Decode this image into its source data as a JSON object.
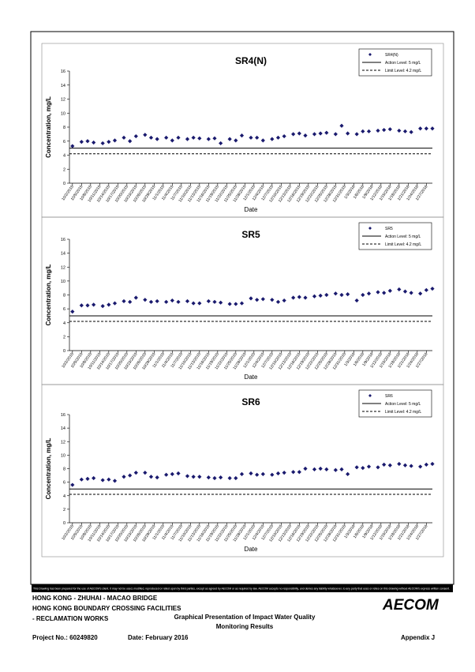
{
  "chart_data": [
    {
      "type": "scatter",
      "title": "SR4(N)",
      "x_label": "Date",
      "y_label": "Concentration, mg/L",
      "xlim": [
        "10/1/2015",
        "1/29/2016"
      ],
      "xticks": [
        "10/2/2015",
        "10/5/2015",
        "10/8/2015",
        "10/11/2015",
        "10/14/2015",
        "10/17/2015",
        "10/20/2015",
        "10/23/2015",
        "10/26/2015",
        "10/29/2015",
        "11/1/2015",
        "11/4/2015",
        "11/7/2015",
        "11/10/2015",
        "11/13/2015",
        "11/16/2015",
        "11/19/2015",
        "11/22/2015",
        "11/25/2015",
        "11/28/2015",
        "12/1/2015",
        "12/4/2015",
        "12/7/2015",
        "12/10/2015",
        "12/13/2015",
        "12/16/2015",
        "12/19/2015",
        "12/22/2015",
        "12/25/2015",
        "12/28/2015",
        "12/31/2015",
        "1/3/2016",
        "1/6/2016",
        "1/9/2016",
        "1/12/2016",
        "1/15/2016",
        "1/18/2016",
        "1/21/2016",
        "1/24/2016",
        "1/27/2016"
      ],
      "ylim": [
        0,
        16
      ],
      "yticks": [
        0,
        2,
        4,
        6,
        8,
        10,
        12,
        14,
        16
      ],
      "series": [
        {
          "name": "SR4(N)",
          "color": "#1a1a6e",
          "x": [
            "10/2/2015",
            "10/5/2015",
            "10/7/2015",
            "10/9/2015",
            "10/12/2015",
            "10/14/2015",
            "10/16/2015",
            "10/19/2015",
            "10/21/2015",
            "10/23/2015",
            "10/26/2015",
            "10/28/2015",
            "10/30/2015",
            "11/2/2015",
            "11/4/2015",
            "11/6/2015",
            "11/9/2015",
            "11/11/2015",
            "11/13/2015",
            "11/16/2015",
            "11/18/2015",
            "11/20/2015",
            "11/23/2015",
            "11/25/2015",
            "11/27/2015",
            "11/30/2015",
            "12/2/2015",
            "12/4/2015",
            "12/7/2015",
            "12/9/2015",
            "12/11/2015",
            "12/14/2015",
            "12/16/2015",
            "12/18/2015",
            "12/21/2015",
            "12/23/2015",
            "12/25/2015",
            "12/28/2015",
            "12/30/2015",
            "1/1/2016",
            "1/4/2016",
            "1/6/2016",
            "1/8/2016",
            "1/11/2016",
            "1/13/2016",
            "1/15/2016",
            "1/18/2016",
            "1/20/2016",
            "1/22/2016",
            "1/25/2016",
            "1/27/2016",
            "1/29/2016"
          ],
          "values": [
            5.3,
            5.9,
            6.0,
            5.8,
            5.7,
            5.9,
            6.1,
            6.5,
            6.0,
            6.7,
            6.9,
            6.5,
            6.3,
            6.5,
            6.1,
            6.5,
            6.3,
            6.5,
            6.4,
            6.3,
            6.4,
            5.7,
            6.3,
            6.1,
            6.8,
            6.5,
            6.5,
            6.1,
            6.3,
            6.5,
            6.7,
            7.0,
            7.1,
            6.8,
            7.0,
            7.1,
            7.2,
            7.0,
            8.2,
            7.1,
            7.0,
            7.4,
            7.4,
            7.5,
            7.6,
            7.7,
            7.5,
            7.4,
            7.3,
            7.8,
            7.8,
            7.8
          ]
        }
      ],
      "reference_lines": [
        {
          "name": "Action Level: 5 mg/L",
          "value": 5,
          "style": "solid"
        },
        {
          "name": "Limit Level: 4.2 mg/L",
          "value": 4.2,
          "style": "dashed"
        }
      ]
    },
    {
      "type": "scatter",
      "title": "SR5",
      "x_label": "Date",
      "y_label": "Concentration, mg/L",
      "xlim": [
        "10/1/2015",
        "1/29/2016"
      ],
      "xticks": [
        "10/2/2015",
        "10/5/2015",
        "10/8/2015",
        "10/11/2015",
        "10/14/2015",
        "10/17/2015",
        "10/20/2015",
        "10/23/2015",
        "10/26/2015",
        "10/29/2015",
        "11/1/2015",
        "11/4/2015",
        "11/7/2015",
        "11/10/2015",
        "11/13/2015",
        "11/16/2015",
        "11/19/2015",
        "11/22/2015",
        "11/25/2015",
        "11/28/2015",
        "12/1/2015",
        "12/4/2015",
        "12/7/2015",
        "12/10/2015",
        "12/13/2015",
        "12/16/2015",
        "12/19/2015",
        "12/22/2015",
        "12/25/2015",
        "12/28/2015",
        "12/31/2015",
        "1/3/2016",
        "1/6/2016",
        "1/9/2016",
        "1/12/2016",
        "1/15/2016",
        "1/18/2016",
        "1/21/2016",
        "1/24/2016",
        "1/27/2016"
      ],
      "ylim": [
        0,
        16
      ],
      "yticks": [
        0,
        2,
        4,
        6,
        8,
        10,
        12,
        14,
        16
      ],
      "series": [
        {
          "name": "SR5",
          "color": "#1a1a6e",
          "x": [
            "10/2/2015",
            "10/5/2015",
            "10/7/2015",
            "10/9/2015",
            "10/12/2015",
            "10/14/2015",
            "10/16/2015",
            "10/19/2015",
            "10/21/2015",
            "10/23/2015",
            "10/26/2015",
            "10/28/2015",
            "10/30/2015",
            "11/2/2015",
            "11/4/2015",
            "11/6/2015",
            "11/9/2015",
            "11/11/2015",
            "11/13/2015",
            "11/16/2015",
            "11/18/2015",
            "11/20/2015",
            "11/23/2015",
            "11/25/2015",
            "11/27/2015",
            "11/30/2015",
            "12/2/2015",
            "12/4/2015",
            "12/7/2015",
            "12/9/2015",
            "12/11/2015",
            "12/14/2015",
            "12/16/2015",
            "12/18/2015",
            "12/21/2015",
            "12/23/2015",
            "12/25/2015",
            "12/28/2015",
            "12/30/2015",
            "1/1/2016",
            "1/4/2016",
            "1/6/2016",
            "1/8/2016",
            "1/11/2016",
            "1/13/2016",
            "1/15/2016",
            "1/18/2016",
            "1/20/2016",
            "1/22/2016",
            "1/25/2016",
            "1/27/2016",
            "1/29/2016"
          ],
          "values": [
            5.6,
            6.5,
            6.5,
            6.6,
            6.4,
            6.6,
            6.8,
            7.1,
            7.0,
            7.6,
            7.3,
            7.0,
            7.1,
            7.0,
            7.2,
            7.0,
            7.1,
            6.8,
            6.8,
            7.1,
            7.0,
            6.9,
            6.7,
            6.7,
            6.8,
            7.5,
            7.3,
            7.4,
            7.3,
            7.0,
            7.2,
            7.6,
            7.7,
            7.6,
            7.8,
            7.9,
            8.0,
            8.2,
            8.0,
            8.1,
            7.2,
            8.0,
            8.2,
            8.4,
            8.3,
            8.6,
            8.8,
            8.5,
            8.3,
            8.2,
            8.7,
            8.9
          ]
        }
      ],
      "reference_lines": [
        {
          "name": "Action Level: 5 mg/L",
          "value": 5,
          "style": "solid"
        },
        {
          "name": "Limit Level: 4.2 mg/L",
          "value": 4.2,
          "style": "dashed"
        }
      ]
    },
    {
      "type": "scatter",
      "title": "SR6",
      "x_label": "Date",
      "y_label": "Concentration, mg/L",
      "xlim": [
        "10/1/2015",
        "1/29/2016"
      ],
      "xticks": [
        "10/2/2015",
        "10/5/2015",
        "10/8/2015",
        "10/11/2015",
        "10/14/2015",
        "10/17/2015",
        "10/20/2015",
        "10/23/2015",
        "10/26/2015",
        "10/29/2015",
        "11/1/2015",
        "11/4/2015",
        "11/7/2015",
        "11/10/2015",
        "11/13/2015",
        "11/16/2015",
        "11/19/2015",
        "11/22/2015",
        "11/25/2015",
        "11/28/2015",
        "12/1/2015",
        "12/4/2015",
        "12/7/2015",
        "12/10/2015",
        "12/13/2015",
        "12/16/2015",
        "12/19/2015",
        "12/22/2015",
        "12/25/2015",
        "12/28/2015",
        "12/31/2015",
        "1/3/2016",
        "1/6/2016",
        "1/9/2016",
        "1/12/2016",
        "1/15/2016",
        "1/18/2016",
        "1/21/2016",
        "1/24/2016",
        "1/27/2016"
      ],
      "ylim": [
        0,
        16
      ],
      "yticks": [
        0,
        2,
        4,
        6,
        8,
        10,
        12,
        14,
        16
      ],
      "series": [
        {
          "name": "SR6",
          "color": "#1a1a6e",
          "x": [
            "10/2/2015",
            "10/5/2015",
            "10/7/2015",
            "10/9/2015",
            "10/12/2015",
            "10/14/2015",
            "10/16/2015",
            "10/19/2015",
            "10/21/2015",
            "10/23/2015",
            "10/26/2015",
            "10/28/2015",
            "10/30/2015",
            "11/2/2015",
            "11/4/2015",
            "11/6/2015",
            "11/9/2015",
            "11/11/2015",
            "11/13/2015",
            "11/16/2015",
            "11/18/2015",
            "11/20/2015",
            "11/23/2015",
            "11/25/2015",
            "11/27/2015",
            "11/30/2015",
            "12/2/2015",
            "12/4/2015",
            "12/7/2015",
            "12/9/2015",
            "12/11/2015",
            "12/14/2015",
            "12/16/2015",
            "12/18/2015",
            "12/21/2015",
            "12/23/2015",
            "12/25/2015",
            "12/28/2015",
            "12/30/2015",
            "1/1/2016",
            "1/4/2016",
            "1/6/2016",
            "1/8/2016",
            "1/11/2016",
            "1/13/2016",
            "1/15/2016",
            "1/18/2016",
            "1/20/2016",
            "1/22/2016",
            "1/25/2016",
            "1/27/2016",
            "1/29/2016"
          ],
          "values": [
            5.6,
            6.4,
            6.5,
            6.6,
            6.3,
            6.4,
            6.2,
            6.8,
            7.0,
            7.4,
            7.4,
            6.8,
            6.7,
            7.1,
            7.2,
            7.3,
            6.9,
            6.8,
            6.8,
            6.7,
            6.6,
            6.7,
            6.6,
            6.6,
            7.2,
            7.3,
            7.1,
            7.2,
            7.1,
            7.3,
            7.4,
            7.5,
            7.5,
            8.0,
            7.9,
            8.0,
            7.9,
            7.8,
            7.9,
            7.2,
            8.2,
            8.1,
            8.3,
            8.2,
            8.6,
            8.5,
            8.7,
            8.5,
            8.4,
            8.3,
            8.6,
            8.7
          ]
        }
      ],
      "reference_lines": [
        {
          "name": "Action Level: 5 mg/L",
          "value": 5,
          "style": "solid"
        },
        {
          "name": "Limit Level: 4.2 mg/L",
          "value": 4.2,
          "style": "dashed"
        }
      ]
    }
  ],
  "footer": {
    "disclaimer": "This Drawing has been prepared for the use of AECOM's client. It may not be used, modified, reproduced or relied upon by third parties, except as agreed by AECOM or as required by law. AECOM accepts no responsibility, and denies any liability whatsoever, to any party that uses or relies on this drawing without AECOM's express written consent.",
    "project_lines": [
      "HONG KONG - ZHUHAI - MACAO BRIDGE",
      "HONG KONG BOUNDARY CROSSING FACILITIES",
      "- RECLAMATION WORKS"
    ],
    "logo": "AECOM",
    "title_lines": [
      "Graphical Presentation of Impact Water Quality",
      "Monitoring Results"
    ],
    "project_no": "Project No.: 60249820",
    "date": "Date: February 2016",
    "appendix": "Appendix J"
  }
}
